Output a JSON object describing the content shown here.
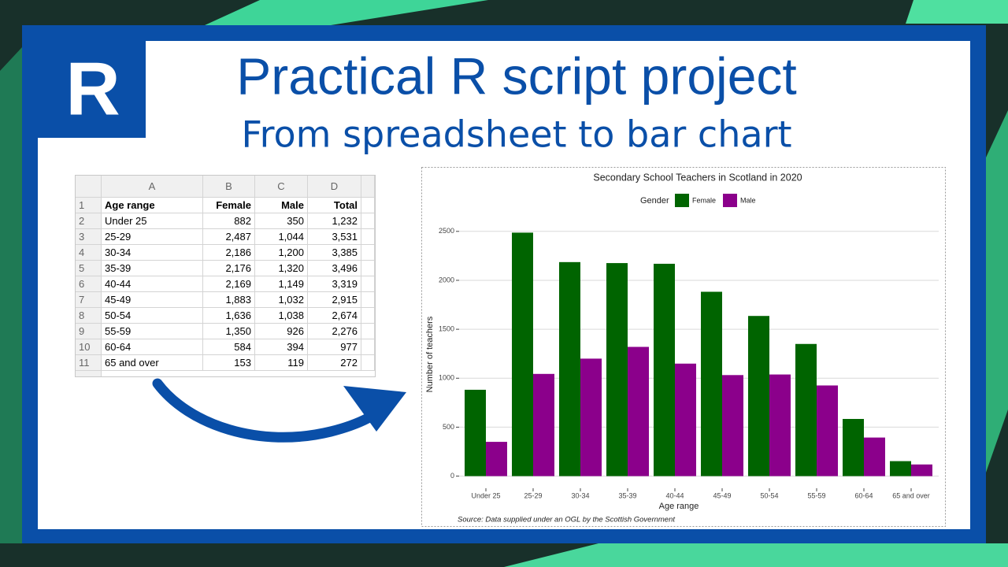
{
  "header": {
    "logo": "R",
    "title": "Practical R script project",
    "subtitle": "From spreadsheet to bar chart"
  },
  "table": {
    "columns": [
      "A",
      "B",
      "C",
      "D"
    ],
    "row_numbers": [
      1,
      2,
      3,
      4,
      5,
      6,
      7,
      8,
      9,
      10,
      11
    ],
    "rows": [
      [
        "Age range",
        "Female",
        "Male",
        "Total"
      ],
      [
        "Under 25",
        "882",
        "350",
        "1,232"
      ],
      [
        "25-29",
        "2,487",
        "1,044",
        "3,531"
      ],
      [
        "30-34",
        "2,186",
        "1,200",
        "3,385"
      ],
      [
        "35-39",
        "2,176",
        "1,320",
        "3,496"
      ],
      [
        "40-44",
        "2,169",
        "1,149",
        "3,319"
      ],
      [
        "45-49",
        "1,883",
        "1,032",
        "2,915"
      ],
      [
        "50-54",
        "1,636",
        "1,038",
        "2,674"
      ],
      [
        "55-59",
        "1,350",
        "926",
        "2,276"
      ],
      [
        "60-64",
        "584",
        "394",
        "977"
      ],
      [
        "65 and over",
        "153",
        "119",
        "272"
      ]
    ]
  },
  "chart_data": {
    "type": "bar",
    "title": "Secondary School Teachers in Scotland in 2020",
    "legend_title": "Gender",
    "x_label": "Age range",
    "y_label": "Number of teachers",
    "caption": "Source: Data supplied under an OGL by the Scottish Government",
    "categories": [
      "Under 25",
      "25-29",
      "30-34",
      "35-39",
      "40-44",
      "45-49",
      "50-54",
      "55-59",
      "60-64",
      "65 and over"
    ],
    "series": [
      {
        "name": "Female",
        "color": "#006400",
        "values": [
          882,
          2487,
          2186,
          2176,
          2169,
          1883,
          1636,
          1350,
          584,
          153
        ]
      },
      {
        "name": "Male",
        "color": "#8b008b",
        "values": [
          350,
          1044,
          1200,
          1320,
          1149,
          1032,
          1038,
          926,
          394,
          119
        ]
      }
    ],
    "ylim": [
      -124,
      2611
    ],
    "yticks": [
      0,
      500,
      1000,
      1500,
      2000,
      2500
    ],
    "grid": true
  }
}
